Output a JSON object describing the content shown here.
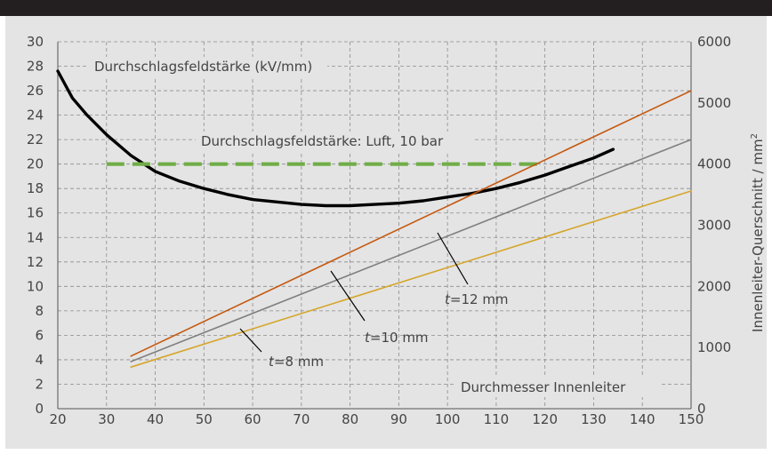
{
  "chart_data": {
    "type": "line",
    "xlabel": "Durchmesser Innenleiter",
    "ylabel_right": "Innenleiter-Querschnitt / mm",
    "ylabel_right_sup": "2",
    "xlim": [
      20,
      150
    ],
    "ylim_left": [
      0,
      30
    ],
    "ylim_right": [
      0,
      6000
    ],
    "x_ticks": [
      20,
      30,
      40,
      50,
      60,
      70,
      80,
      90,
      100,
      110,
      120,
      130,
      140,
      150
    ],
    "y_ticks_left": [
      0,
      2,
      4,
      6,
      8,
      10,
      12,
      14,
      16,
      18,
      20,
      22,
      24,
      26,
      28,
      30
    ],
    "y_ticks_right": [
      0,
      1000,
      2000,
      3000,
      4000,
      5000,
      6000
    ],
    "grid": true,
    "series": [
      {
        "name": "Durchschlagsfeldstärke (kV/mm)",
        "axis": "left",
        "color": "#000000",
        "style": "solid-thick",
        "x": [
          20,
          23,
          26,
          30,
          35,
          40,
          45,
          50,
          55,
          60,
          65,
          70,
          75,
          80,
          85,
          90,
          95,
          100,
          105,
          110,
          115,
          120,
          125,
          130,
          134
        ],
        "y": [
          27.6,
          25.4,
          24.0,
          22.4,
          20.7,
          19.4,
          18.6,
          18.0,
          17.5,
          17.1,
          16.9,
          16.7,
          16.6,
          16.6,
          16.7,
          16.8,
          17.0,
          17.3,
          17.6,
          18.0,
          18.5,
          19.1,
          19.8,
          20.5,
          21.2
        ]
      },
      {
        "name": "Durchschlagsfeldstärke: Luft, 10 bar",
        "axis": "left",
        "color": "#70ad47",
        "style": "dashed",
        "x": [
          30,
          120
        ],
        "y": [
          20,
          20
        ]
      },
      {
        "name": "t=12 mm",
        "axis": "right",
        "color": "#c55a11",
        "x": [
          35,
          150
        ],
        "y": [
          860,
          5200
        ]
      },
      {
        "name": "t=10 mm",
        "axis": "right",
        "color": "#7f7f7f",
        "x": [
          35,
          150
        ],
        "y": [
          770,
          4400
        ]
      },
      {
        "name": "t=8 mm",
        "axis": "right",
        "color": "#d6a52a",
        "x": [
          35,
          150
        ],
        "y": [
          680,
          3560
        ]
      }
    ],
    "annotations": {
      "feld_label": "Durchschlagsfeldstärke (kV/mm)",
      "luft_label": "Durchschlagsfeldstärke:  Luft, 10 bar",
      "t12": {
        "var": "t",
        "rest": "=12 mm"
      },
      "t10": {
        "var": "t",
        "rest": "=10 mm"
      },
      "t8": {
        "var": "t",
        "rest": "=8 mm"
      },
      "xlabel": "Durchmesser Innenleiter"
    }
  }
}
